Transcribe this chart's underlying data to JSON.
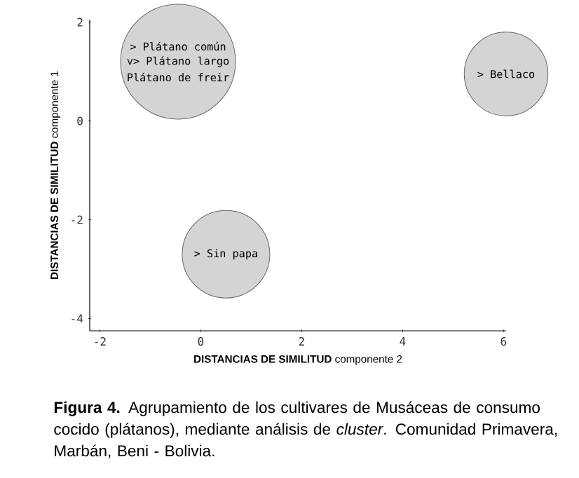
{
  "chart_data": {
    "type": "bubble",
    "xlabel": "**DISTANCIAS DE SIMILITUD** componente 2",
    "ylabel": "**DISTANCIAS DE SIMILITUD** componente 1",
    "xlim": [
      -2.2,
      6.05
    ],
    "ylim": [
      -4.25,
      2.05
    ],
    "xticks": [
      -2,
      0,
      2,
      4,
      6
    ],
    "yticks": [
      -4,
      -2,
      0,
      2
    ],
    "grid": false,
    "x": [
      -0.45,
      6.05,
      0.5
    ],
    "values": [
      1.2,
      0.95,
      -2.7
    ],
    "sizes": [
      1,
      0.53,
      0.58
    ],
    "color": "#d4d4d4",
    "annotations": [
      {
        "text": "> Plátano común",
        "x": -0.45,
        "y": 1.2
      },
      {
        "text": "v> Plátano largo",
        "x": -0.45,
        "y": 1.2
      },
      {
        "text": "Plátano de freir",
        "x": -0.45,
        "y": 1.2
      },
      {
        "text": "> Bellaco",
        "x": 6.05,
        "y": 0.95
      },
      {
        "text": "> Sin papa",
        "x": 0.5,
        "y": -2.7
      },
      "**Figura 4.** Agrupamiento de los cultivares de Musáceas de consumo cocido (plátanos), mediante análisis de *cluster*. Comunidad Primavera, Marbán, Beni - Bolivia."
    ]
  }
}
